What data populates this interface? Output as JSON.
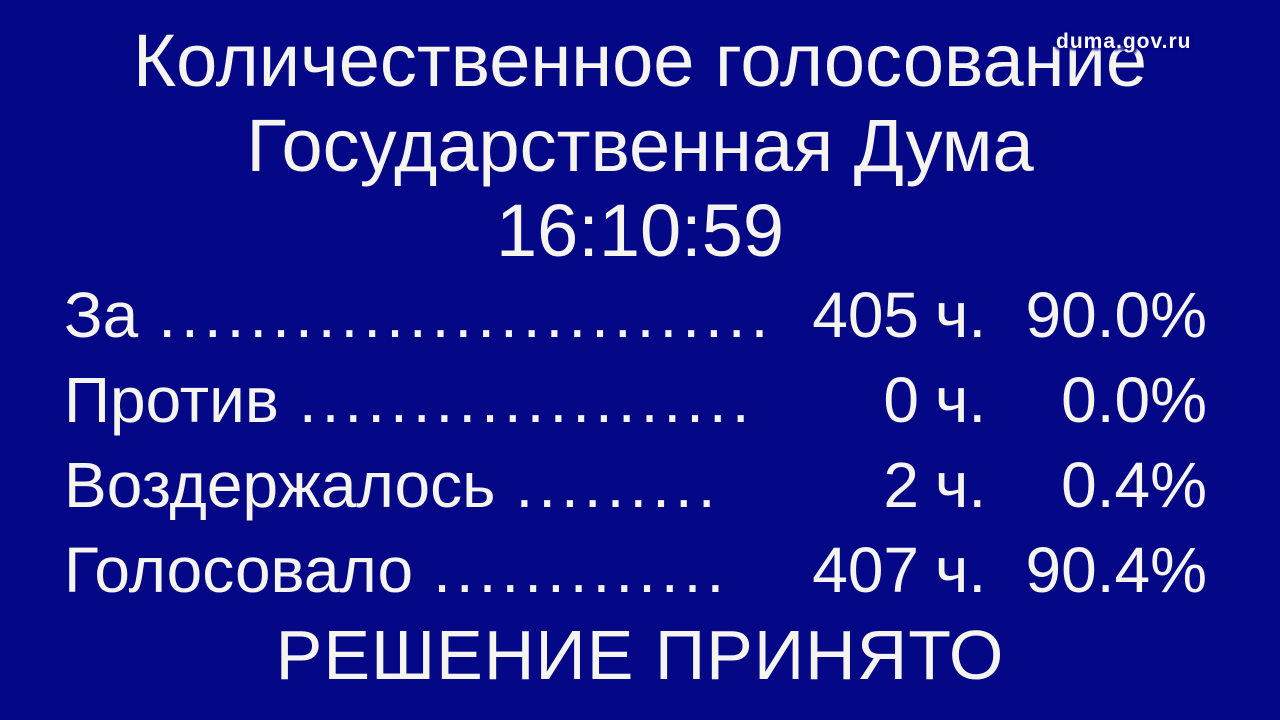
{
  "app": {
    "watermark": "duma.gov.ru"
  },
  "header": {
    "title": "Количественное голосование",
    "subtitle": "Государственная Дума",
    "time": "16:10:59"
  },
  "results": {
    "rows": [
      {
        "label": "За",
        "leader": "............................",
        "count": "405",
        "unit": "ч.",
        "percent": "90.0%"
      },
      {
        "label": "Против",
        "leader": "....................",
        "count": "0",
        "unit": "ч.",
        "percent": "0.0%"
      },
      {
        "label": "Воздержалось",
        "leader": ".........",
        "count": "2",
        "unit": "ч.",
        "percent": "0.4%"
      },
      {
        "label": "Голосовало",
        "leader": ".............",
        "count": "407",
        "unit": "ч.",
        "percent": "90.4%"
      }
    ],
    "verdict": "РЕШЕНИЕ ПРИНЯТО"
  },
  "colors": {
    "background": "#050886",
    "text": "#f5f4ee"
  }
}
